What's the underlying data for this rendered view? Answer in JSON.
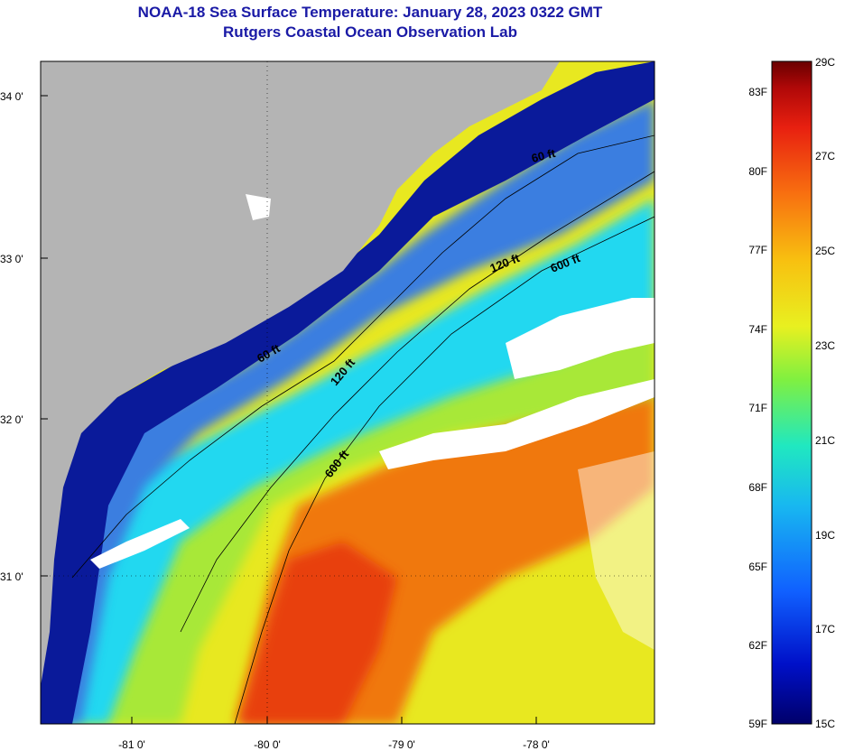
{
  "header": {
    "title": "NOAA-18 Sea Surface Temperature:  January 28, 2023 0322 GMT",
    "subtitle": "Rutgers Coastal Ocean Observation Lab"
  },
  "map": {
    "lat_labels": [
      "34 0'",
      "33 0'",
      "32 0'",
      "31 0'"
    ],
    "lon_labels": [
      "-81 0'",
      "-80 0'",
      "-79 0'",
      "-78 0'"
    ],
    "contour_labels": [
      "60 ft",
      "120 ft",
      "600 ft",
      "60 ft",
      "120 ft",
      "600 ft"
    ],
    "colors": {
      "land": "#b4b4b4",
      "cloud": "#ffffff",
      "cold_water": "#0a1a9a",
      "shelf_water": "#3a7ee0",
      "cyan_water": "#20d8f0",
      "yellow_water": "#e8e820",
      "orange_water": "#f07810",
      "hot_water": "#e84010"
    }
  },
  "colorbar": {
    "fahrenheit_labels": [
      "83F",
      "80F",
      "77F",
      "74F",
      "71F",
      "68F",
      "65F",
      "62F",
      "59F"
    ],
    "celsius_labels": [
      "29C",
      "27C",
      "25C",
      "23C",
      "21C",
      "19C",
      "17C",
      "15C"
    ],
    "range_c": [
      15,
      29
    ],
    "gradient": [
      "#00006a",
      "#0010c8",
      "#1060ff",
      "#18b8f0",
      "#20e8c0",
      "#80f040",
      "#e8f020",
      "#f8c010",
      "#f87010",
      "#e82010",
      "#b00808",
      "#6a0000"
    ]
  }
}
